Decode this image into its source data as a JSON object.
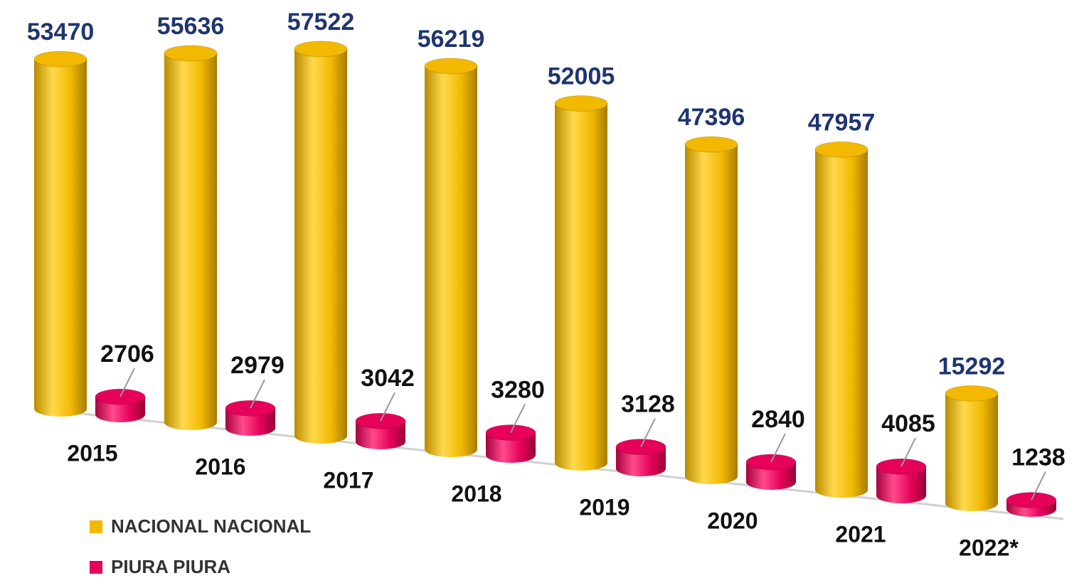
{
  "chart_data": {
    "type": "bar3d",
    "categories": [
      "2015",
      "2016",
      "2017",
      "2018",
      "2019",
      "2020",
      "2021",
      "2022*"
    ],
    "series": [
      {
        "name": "NACIONAL NACIONAL",
        "color": "#f2b900",
        "values": [
          53470,
          55636,
          57522,
          56219,
          52005,
          47396,
          47957,
          15292
        ]
      },
      {
        "name": "PIURA PIURA",
        "color": "#e6005a",
        "values": [
          2706,
          2979,
          3042,
          3280,
          3128,
          2840,
          4085,
          1238
        ]
      }
    ],
    "legend": "bottom-left"
  }
}
